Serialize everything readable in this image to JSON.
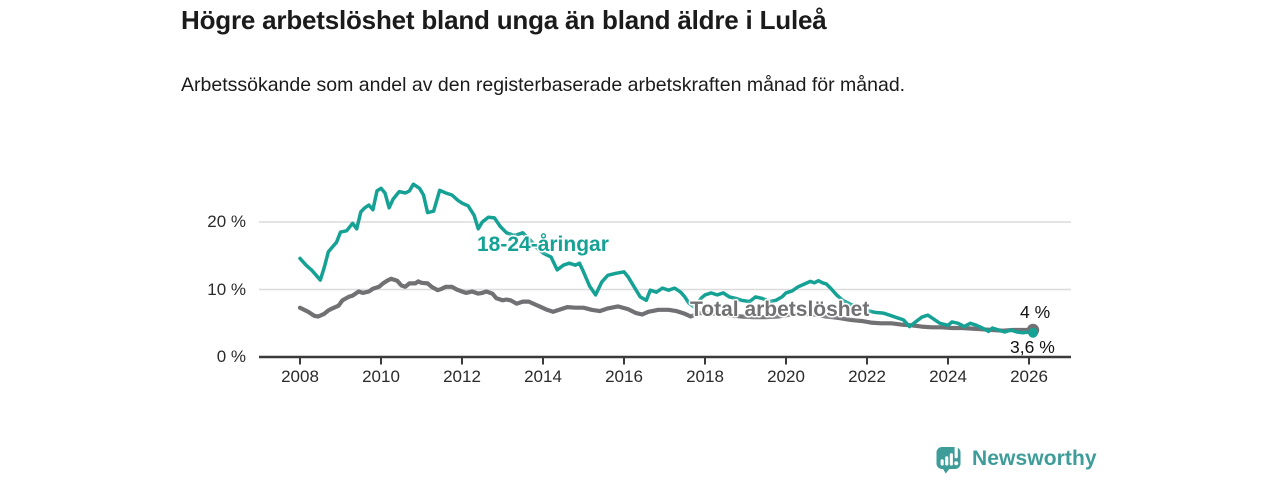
{
  "header": {
    "title": "Högre arbetslöshet bland unga än bland äldre i Luleå",
    "subtitle": "Arbetssökande som andel av den registerbaserade arbetskraften månad för månad."
  },
  "colors": {
    "youth_teal": "#16A195",
    "total_gray": "#717174",
    "grid": "#DBDBDB",
    "axis": "#3A3A3A",
    "text": "#1b1b1b",
    "brand_teal": "#3E9D99"
  },
  "chart_data": {
    "type": "line",
    "title": "Högre arbetslöshet bland unga än bland äldre i Luleå",
    "subtitle": "Arbetssökande som andel av den registerbaserade arbetskraften månad för månad.",
    "unit": "%",
    "xlim": [
      2007,
      2027
    ],
    "ylim": [
      0,
      27
    ],
    "grid": "horizontal",
    "legend_position": "inline-labels",
    "x_ticks": [
      2008,
      2010,
      2012,
      2014,
      2016,
      2018,
      2020,
      2022,
      2024,
      2026
    ],
    "x_tick_labels": [
      "2008",
      "2010",
      "2012",
      "2014",
      "2016",
      "2018",
      "2020",
      "2022",
      "2024",
      "2026"
    ],
    "y_ticks": [
      0,
      10,
      20
    ],
    "y_tick_labels": [
      "0 %",
      "10 %",
      "20 %"
    ],
    "series": [
      {
        "id": "youth",
        "name": "18-24-åringar",
        "color": "#16A195",
        "end_label": "3,6 %",
        "end_value": 3.6,
        "points": [
          [
            2008.0,
            14.6
          ],
          [
            2008.15,
            13.6
          ],
          [
            2008.3,
            12.8
          ],
          [
            2008.4,
            12.1
          ],
          [
            2008.5,
            11.4
          ],
          [
            2008.6,
            13.3
          ],
          [
            2008.7,
            15.6
          ],
          [
            2008.8,
            16.3
          ],
          [
            2008.9,
            17.0
          ],
          [
            2009.0,
            18.5
          ],
          [
            2009.15,
            18.7
          ],
          [
            2009.3,
            19.8
          ],
          [
            2009.4,
            19.0
          ],
          [
            2009.5,
            21.5
          ],
          [
            2009.6,
            22.1
          ],
          [
            2009.7,
            22.5
          ],
          [
            2009.8,
            21.8
          ],
          [
            2009.9,
            24.6
          ],
          [
            2010.0,
            25.0
          ],
          [
            2010.1,
            24.3
          ],
          [
            2010.2,
            22.1
          ],
          [
            2010.3,
            23.4
          ],
          [
            2010.45,
            24.5
          ],
          [
            2010.6,
            24.3
          ],
          [
            2010.7,
            24.6
          ],
          [
            2010.8,
            25.6
          ],
          [
            2010.95,
            25.0
          ],
          [
            2011.05,
            24.0
          ],
          [
            2011.15,
            21.4
          ],
          [
            2011.3,
            21.6
          ],
          [
            2011.45,
            24.7
          ],
          [
            2011.6,
            24.3
          ],
          [
            2011.75,
            24.0
          ],
          [
            2011.9,
            23.2
          ],
          [
            2012.0,
            22.8
          ],
          [
            2012.15,
            22.4
          ],
          [
            2012.3,
            21.0
          ],
          [
            2012.4,
            19.0
          ],
          [
            2012.5,
            20.0
          ],
          [
            2012.65,
            20.7
          ],
          [
            2012.8,
            20.6
          ],
          [
            2012.95,
            19.3
          ],
          [
            2013.1,
            18.4
          ],
          [
            2013.3,
            18.0
          ],
          [
            2013.5,
            18.4
          ],
          [
            2013.7,
            17.2
          ],
          [
            2013.85,
            16.2
          ],
          [
            2014.0,
            15.4
          ],
          [
            2014.2,
            14.8
          ],
          [
            2014.35,
            12.9
          ],
          [
            2014.5,
            13.6
          ],
          [
            2014.65,
            13.9
          ],
          [
            2014.8,
            13.6
          ],
          [
            2014.9,
            13.9
          ],
          [
            2015.0,
            12.6
          ],
          [
            2015.15,
            10.5
          ],
          [
            2015.3,
            9.2
          ],
          [
            2015.45,
            11.1
          ],
          [
            2015.6,
            12.1
          ],
          [
            2015.8,
            12.4
          ],
          [
            2016.0,
            12.6
          ],
          [
            2016.1,
            11.9
          ],
          [
            2016.25,
            10.4
          ],
          [
            2016.4,
            8.9
          ],
          [
            2016.55,
            8.4
          ],
          [
            2016.65,
            9.9
          ],
          [
            2016.8,
            9.6
          ],
          [
            2016.95,
            10.2
          ],
          [
            2017.1,
            9.9
          ],
          [
            2017.25,
            10.2
          ],
          [
            2017.4,
            9.6
          ],
          [
            2017.5,
            8.9
          ],
          [
            2017.6,
            8.0
          ],
          [
            2017.75,
            7.3
          ],
          [
            2017.9,
            8.7
          ],
          [
            2018.0,
            9.2
          ],
          [
            2018.15,
            9.5
          ],
          [
            2018.3,
            9.2
          ],
          [
            2018.45,
            9.5
          ],
          [
            2018.6,
            8.9
          ],
          [
            2018.75,
            8.7
          ],
          [
            2018.9,
            8.4
          ],
          [
            2019.1,
            8.2
          ],
          [
            2019.25,
            8.9
          ],
          [
            2019.4,
            8.7
          ],
          [
            2019.6,
            8.2
          ],
          [
            2019.75,
            8.4
          ],
          [
            2019.9,
            8.9
          ],
          [
            2020.0,
            9.5
          ],
          [
            2020.15,
            9.8
          ],
          [
            2020.3,
            10.4
          ],
          [
            2020.45,
            10.8
          ],
          [
            2020.6,
            11.2
          ],
          [
            2020.7,
            11.0
          ],
          [
            2020.8,
            11.3
          ],
          [
            2020.9,
            11.0
          ],
          [
            2021.0,
            10.8
          ],
          [
            2021.1,
            10.2
          ],
          [
            2021.25,
            9.2
          ],
          [
            2021.4,
            8.4
          ],
          [
            2021.6,
            7.8
          ],
          [
            2021.8,
            7.3
          ],
          [
            2022.0,
            6.9
          ],
          [
            2022.2,
            6.6
          ],
          [
            2022.4,
            6.5
          ],
          [
            2022.55,
            6.2
          ],
          [
            2022.7,
            5.9
          ],
          [
            2022.9,
            5.5
          ],
          [
            2023.05,
            4.5
          ],
          [
            2023.2,
            5.2
          ],
          [
            2023.35,
            5.9
          ],
          [
            2023.5,
            6.2
          ],
          [
            2023.65,
            5.6
          ],
          [
            2023.8,
            5.0
          ],
          [
            2024.0,
            4.7
          ],
          [
            2024.1,
            5.2
          ],
          [
            2024.25,
            5.0
          ],
          [
            2024.4,
            4.5
          ],
          [
            2024.55,
            5.0
          ],
          [
            2024.7,
            4.7
          ],
          [
            2024.85,
            4.3
          ],
          [
            2025.0,
            3.8
          ],
          [
            2025.1,
            4.3
          ],
          [
            2025.25,
            4.0
          ],
          [
            2025.4,
            3.7
          ],
          [
            2025.55,
            4.0
          ],
          [
            2025.7,
            3.7
          ],
          [
            2025.85,
            3.6
          ],
          [
            2026.0,
            3.7
          ],
          [
            2026.1,
            3.6
          ]
        ]
      },
      {
        "id": "total",
        "name": "Total arbetslöshet",
        "color": "#717174",
        "end_label": "4 %",
        "end_value": 4.0,
        "points": [
          [
            2008.0,
            7.3
          ],
          [
            2008.2,
            6.7
          ],
          [
            2008.35,
            6.1
          ],
          [
            2008.45,
            6.0
          ],
          [
            2008.6,
            6.4
          ],
          [
            2008.7,
            6.9
          ],
          [
            2008.8,
            7.2
          ],
          [
            2008.95,
            7.6
          ],
          [
            2009.05,
            8.4
          ],
          [
            2009.2,
            8.9
          ],
          [
            2009.3,
            9.1
          ],
          [
            2009.45,
            9.7
          ],
          [
            2009.55,
            9.5
          ],
          [
            2009.7,
            9.7
          ],
          [
            2009.8,
            10.1
          ],
          [
            2009.95,
            10.4
          ],
          [
            2010.05,
            10.9
          ],
          [
            2010.15,
            11.3
          ],
          [
            2010.25,
            11.6
          ],
          [
            2010.4,
            11.3
          ],
          [
            2010.5,
            10.6
          ],
          [
            2010.6,
            10.4
          ],
          [
            2010.7,
            10.9
          ],
          [
            2010.85,
            10.9
          ],
          [
            2010.92,
            11.2
          ],
          [
            2011.0,
            11.0
          ],
          [
            2011.15,
            10.9
          ],
          [
            2011.25,
            10.4
          ],
          [
            2011.4,
            9.9
          ],
          [
            2011.5,
            10.1
          ],
          [
            2011.6,
            10.4
          ],
          [
            2011.75,
            10.4
          ],
          [
            2011.87,
            10.0
          ],
          [
            2012.0,
            9.7
          ],
          [
            2012.1,
            9.5
          ],
          [
            2012.25,
            9.7
          ],
          [
            2012.4,
            9.4
          ],
          [
            2012.5,
            9.5
          ],
          [
            2012.6,
            9.7
          ],
          [
            2012.75,
            9.4
          ],
          [
            2012.85,
            8.7
          ],
          [
            2013.0,
            8.4
          ],
          [
            2013.1,
            8.5
          ],
          [
            2013.2,
            8.4
          ],
          [
            2013.35,
            7.9
          ],
          [
            2013.5,
            8.2
          ],
          [
            2013.65,
            8.2
          ],
          [
            2013.8,
            7.8
          ],
          [
            2013.95,
            7.4
          ],
          [
            2014.1,
            7.0
          ],
          [
            2014.25,
            6.7
          ],
          [
            2014.4,
            7.0
          ],
          [
            2014.6,
            7.4
          ],
          [
            2014.8,
            7.3
          ],
          [
            2015.0,
            7.3
          ],
          [
            2015.2,
            7.0
          ],
          [
            2015.4,
            6.8
          ],
          [
            2015.6,
            7.2
          ],
          [
            2015.85,
            7.5
          ],
          [
            2016.1,
            7.1
          ],
          [
            2016.3,
            6.5
          ],
          [
            2016.45,
            6.3
          ],
          [
            2016.6,
            6.7
          ],
          [
            2016.85,
            7.0
          ],
          [
            2017.1,
            7.0
          ],
          [
            2017.3,
            6.8
          ],
          [
            2017.5,
            6.4
          ],
          [
            2017.65,
            6.0
          ],
          [
            2017.85,
            6.5
          ],
          [
            2018.0,
            6.5
          ],
          [
            2018.3,
            6.4
          ],
          [
            2018.6,
            6.2
          ],
          [
            2018.9,
            6.0
          ],
          [
            2019.2,
            5.9
          ],
          [
            2019.5,
            5.9
          ],
          [
            2019.8,
            6.0
          ],
          [
            2020.1,
            6.3
          ],
          [
            2020.4,
            6.4
          ],
          [
            2020.7,
            6.3
          ],
          [
            2021.0,
            6.0
          ],
          [
            2021.3,
            5.8
          ],
          [
            2021.6,
            5.5
          ],
          [
            2021.9,
            5.3
          ],
          [
            2022.1,
            5.1
          ],
          [
            2022.35,
            5.0
          ],
          [
            2022.6,
            5.0
          ],
          [
            2022.85,
            4.8
          ],
          [
            2023.1,
            4.7
          ],
          [
            2023.35,
            4.5
          ],
          [
            2023.6,
            4.4
          ],
          [
            2023.85,
            4.4
          ],
          [
            2024.1,
            4.3
          ],
          [
            2024.35,
            4.3
          ],
          [
            2024.6,
            4.2
          ],
          [
            2024.85,
            4.1
          ],
          [
            2025.1,
            4.0
          ],
          [
            2025.35,
            3.9
          ],
          [
            2025.6,
            4.0
          ],
          [
            2025.85,
            4.0
          ],
          [
            2026.1,
            4.0
          ]
        ]
      }
    ]
  },
  "footer": {
    "brand": "Newsworthy",
    "logo_icon": "newsworthy-bar-chart-speech-bubble-icon"
  }
}
